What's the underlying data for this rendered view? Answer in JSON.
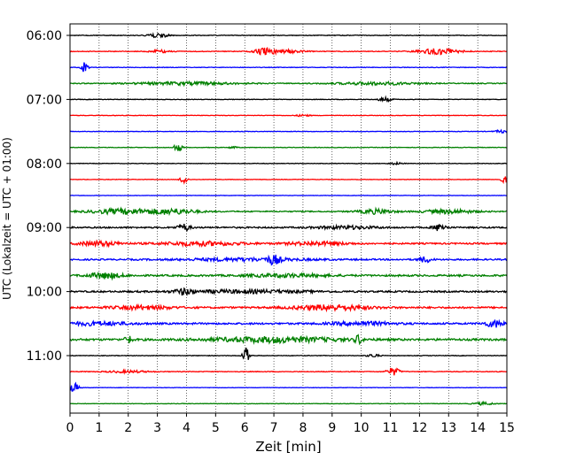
{
  "chart_data": {
    "type": "line",
    "title": "",
    "xlabel": "Zeit  [min]",
    "ylabel": "UTC (Lokalzeit = UTC + 01:00)",
    "xlim": [
      0,
      15
    ],
    "x_ticks": [
      "0",
      "1",
      "2",
      "3",
      "4",
      "5",
      "6",
      "7",
      "8",
      "9",
      "10",
      "11",
      "12",
      "13",
      "14",
      "15"
    ],
    "y_ticks": [
      "06:00",
      "07:00",
      "08:00",
      "09:00",
      "10:00",
      "11:00"
    ],
    "grid": "vertical dotted lines at each minute",
    "colors": [
      "#000000",
      "#ff0000",
      "#0000ff",
      "#008000"
    ],
    "traces": [
      {
        "start": "06:00",
        "color": "#000000",
        "noise": 0.12,
        "bursts": [
          [
            3.0,
            0.5,
            0.8
          ]
        ]
      },
      {
        "start": "06:15",
        "color": "#ff0000",
        "noise": 0.12,
        "bursts": [
          [
            6.7,
            0.5,
            1.2
          ],
          [
            7.5,
            0.8,
            0.5
          ],
          [
            12.7,
            1.0,
            1.0
          ],
          [
            3.1,
            0.5,
            0.5
          ]
        ]
      },
      {
        "start": "06:30",
        "color": "#0000ff",
        "noise": 0.1,
        "bursts": [
          [
            0.5,
            0.15,
            1.8
          ]
        ]
      },
      {
        "start": "06:45",
        "color": "#008000",
        "noise": 0.15,
        "bursts": [
          [
            4.0,
            2.5,
            0.5
          ],
          [
            10.5,
            2.0,
            0.5
          ]
        ]
      },
      {
        "start": "07:00",
        "color": "#000000",
        "noise": 0.1,
        "bursts": [
          [
            10.8,
            0.3,
            0.8
          ]
        ]
      },
      {
        "start": "07:15",
        "color": "#ff0000",
        "noise": 0.09,
        "bursts": [
          [
            8.0,
            0.3,
            0.4
          ]
        ]
      },
      {
        "start": "07:30",
        "color": "#0000ff",
        "noise": 0.09,
        "bursts": [
          [
            14.8,
            0.3,
            0.5
          ]
        ]
      },
      {
        "start": "07:45",
        "color": "#008000",
        "noise": 0.09,
        "bursts": [
          [
            3.7,
            0.2,
            1.5
          ],
          [
            5.6,
            0.2,
            0.4
          ]
        ]
      },
      {
        "start": "08:00",
        "color": "#000000",
        "noise": 0.09,
        "bursts": [
          [
            11.2,
            0.3,
            0.4
          ]
        ]
      },
      {
        "start": "08:15",
        "color": "#ff0000",
        "noise": 0.08,
        "bursts": [
          [
            3.9,
            0.15,
            2.2
          ],
          [
            14.9,
            0.15,
            1.6
          ]
        ]
      },
      {
        "start": "08:30",
        "color": "#0000ff",
        "noise": 0.07,
        "bursts": []
      },
      {
        "start": "08:45",
        "color": "#008000",
        "noise": 0.2,
        "bursts": [
          [
            1.8,
            1.5,
            0.9
          ],
          [
            3.5,
            1.2,
            0.9
          ],
          [
            10.5,
            0.8,
            0.8
          ],
          [
            13.0,
            1.2,
            0.7
          ]
        ]
      },
      {
        "start": "09:00",
        "color": "#000000",
        "noise": 0.25,
        "bursts": [
          [
            3.9,
            0.3,
            1.3
          ],
          [
            12.7,
            0.3,
            1.3
          ],
          [
            9.5,
            1.5,
            0.5
          ]
        ]
      },
      {
        "start": "09:15",
        "color": "#ff0000",
        "noise": 0.25,
        "bursts": [
          [
            1.0,
            1.0,
            0.8
          ],
          [
            4.5,
            2.0,
            0.7
          ],
          [
            8.5,
            1.5,
            0.6
          ]
        ]
      },
      {
        "start": "09:30",
        "color": "#0000ff",
        "noise": 0.25,
        "bursts": [
          [
            7.0,
            0.3,
            1.4
          ],
          [
            12.2,
            0.3,
            1.0
          ],
          [
            6.0,
            3.0,
            0.5
          ]
        ]
      },
      {
        "start": "09:45",
        "color": "#008000",
        "noise": 0.3,
        "bursts": [
          [
            1.2,
            0.8,
            1.0
          ],
          [
            7.5,
            2.0,
            0.5
          ]
        ]
      },
      {
        "start": "10:00",
        "color": "#000000",
        "noise": 0.28,
        "bursts": [
          [
            3.9,
            0.4,
            1.0
          ],
          [
            6.0,
            3.0,
            0.5
          ]
        ]
      },
      {
        "start": "10:15",
        "color": "#ff0000",
        "noise": 0.3,
        "bursts": [
          [
            9.0,
            1.8,
            0.9
          ],
          [
            2.5,
            1.5,
            0.6
          ]
        ]
      },
      {
        "start": "10:30",
        "color": "#0000ff",
        "noise": 0.3,
        "bursts": [
          [
            14.6,
            0.5,
            1.2
          ],
          [
            1.0,
            1.5,
            0.6
          ],
          [
            10.0,
            1.5,
            0.6
          ]
        ]
      },
      {
        "start": "10:45",
        "color": "#008000",
        "noise": 0.35,
        "bursts": [
          [
            7.0,
            3.0,
            0.9
          ],
          [
            2.0,
            0.15,
            1.6
          ],
          [
            9.9,
            0.15,
            1.6
          ]
        ]
      },
      {
        "start": "11:00",
        "color": "#000000",
        "noise": 0.1,
        "bursts": [
          [
            6.05,
            0.15,
            3.8
          ],
          [
            10.4,
            0.3,
            0.6
          ]
        ]
      },
      {
        "start": "11:15",
        "color": "#ff0000",
        "noise": 0.12,
        "bursts": [
          [
            11.1,
            0.3,
            1.4
          ],
          [
            2.0,
            1.0,
            0.4
          ]
        ]
      },
      {
        "start": "11:30",
        "color": "#0000ff",
        "noise": 0.07,
        "bursts": [
          [
            0.15,
            0.2,
            1.8
          ]
        ]
      },
      {
        "start": "11:45",
        "color": "#008000",
        "noise": 0.08,
        "bursts": [
          [
            14.2,
            0.5,
            0.5
          ]
        ]
      }
    ]
  }
}
